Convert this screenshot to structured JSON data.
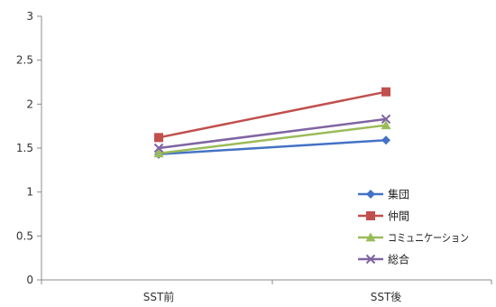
{
  "chart_data": {
    "type": "line",
    "categories": [
      "SST前",
      "SST後"
    ],
    "ylim": [
      0,
      3
    ],
    "yticks": [
      0,
      0.5,
      1,
      1.5,
      2,
      2.5,
      3
    ],
    "ytick_labels": [
      "0",
      "0.5",
      "1",
      "1.5",
      "2",
      "2.5",
      "3"
    ],
    "grid": false,
    "legend_position": "bottom-right",
    "series": [
      {
        "name": "集団",
        "values": [
          1.43,
          1.59
        ],
        "color": "#4472C4",
        "marker": "diamond"
      },
      {
        "name": "仲間",
        "values": [
          1.62,
          2.14
        ],
        "color": "#C0504D",
        "marker": "square"
      },
      {
        "name": "コミュニケーション",
        "values": [
          1.44,
          1.76
        ],
        "color": "#9BBB59",
        "marker": "triangle"
      },
      {
        "name": "総合",
        "values": [
          1.5,
          1.83
        ],
        "color": "#8064A2",
        "marker": "x"
      }
    ]
  }
}
